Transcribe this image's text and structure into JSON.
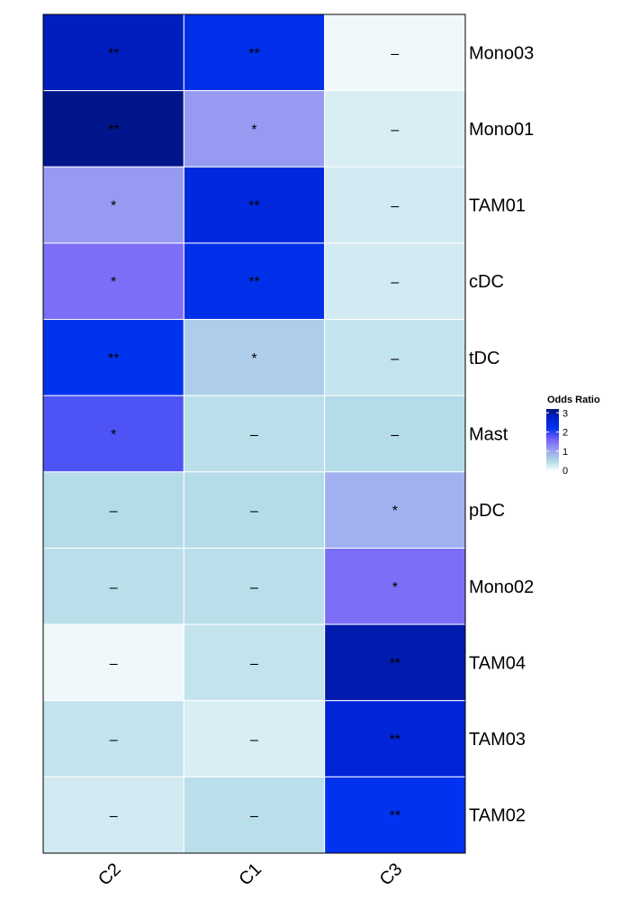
{
  "chart_data": {
    "type": "heatmap",
    "columns": [
      "C2",
      "C1",
      "C3"
    ],
    "rows": [
      "Mono03",
      "Mono01",
      "TAM01",
      "cDC",
      "tDC",
      "Mast",
      "pDC",
      "Mono02",
      "TAM04",
      "TAM03",
      "TAM02"
    ],
    "values": [
      [
        2.8,
        2.3,
        0.05
      ],
      [
        3.1,
        1.1,
        0.2
      ],
      [
        1.1,
        2.5,
        0.25
      ],
      [
        1.5,
        2.3,
        0.25
      ],
      [
        2.2,
        0.6,
        0.35
      ],
      [
        1.8,
        0.4,
        0.45
      ],
      [
        0.45,
        0.45,
        0.9
      ],
      [
        0.4,
        0.4,
        1.5
      ],
      [
        0.05,
        0.35,
        2.9
      ],
      [
        0.35,
        0.2,
        2.6
      ],
      [
        0.25,
        0.4,
        2.2
      ]
    ],
    "marks": [
      [
        "**",
        "**",
        "–"
      ],
      [
        "**",
        "*",
        "–"
      ],
      [
        "*",
        "**",
        "–"
      ],
      [
        "*",
        "**",
        "–"
      ],
      [
        "**",
        "*",
        "–"
      ],
      [
        "*",
        "–",
        "–"
      ],
      [
        "–",
        "–",
        "*"
      ],
      [
        "–",
        "–",
        "*"
      ],
      [
        "–",
        "–",
        "**"
      ],
      [
        "–",
        "–",
        "**"
      ],
      [
        "–",
        "–",
        "**"
      ]
    ],
    "legend": {
      "title": "Odds Ratio",
      "ticks": [
        0,
        1,
        2,
        3
      ],
      "range": [
        0,
        3.2
      ]
    },
    "color_scale": {
      "stops": [
        {
          "value": 0,
          "color": "#f7fbfd"
        },
        {
          "value": 0.45,
          "color": "#b4dce8"
        },
        {
          "value": 1,
          "color": "#9da6f0"
        },
        {
          "value": 1.6,
          "color": "#7563f7"
        },
        {
          "value": 2.2,
          "color": "#0033f0"
        },
        {
          "value": 2.7,
          "color": "#0020d0"
        },
        {
          "value": 3.2,
          "color": "#001478"
        }
      ]
    }
  }
}
